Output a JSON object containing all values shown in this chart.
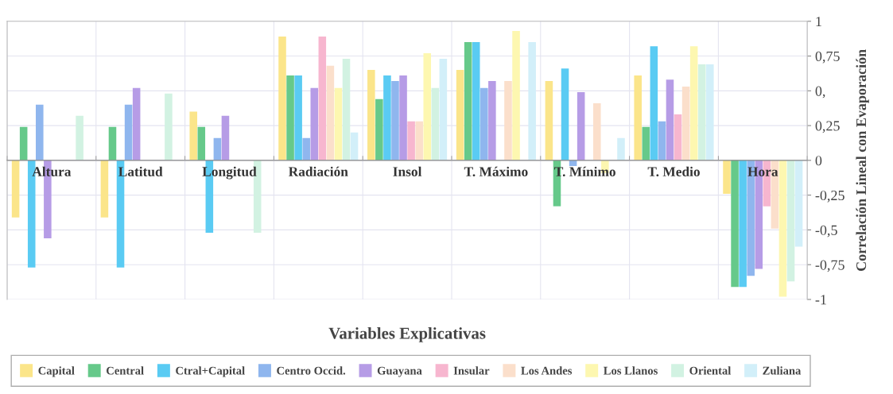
{
  "chart_data": {
    "type": "bar",
    "xlabel": "Variables Explicativas",
    "ylabel": "Correlación Lineal con Evaporación",
    "categories": [
      "Altura",
      "Latitud",
      "Longitud",
      "Radiación",
      "Insol",
      "T. Máximo",
      "T. Mínimo",
      "T. Medio",
      "Hora"
    ],
    "series": [
      {
        "name": "Capital",
        "color": "#fbe58a",
        "values": [
          -0.41,
          -0.41,
          0.35,
          0.89,
          0.65,
          0.65,
          0.57,
          0.61,
          -0.24
        ]
      },
      {
        "name": "Central",
        "color": "#66c98a",
        "values": [
          0.24,
          0.24,
          0.24,
          0.61,
          0.44,
          0.85,
          -0.33,
          0.24,
          -0.91
        ]
      },
      {
        "name": "Ctral+Capital",
        "color": "#5acbf3",
        "values": [
          -0.77,
          -0.77,
          -0.52,
          0.61,
          0.61,
          0.85,
          0.66,
          0.82,
          -0.91
        ]
      },
      {
        "name": "Centro Occid.",
        "color": "#8fb6ee",
        "values": [
          0.4,
          0.4,
          0.16,
          0.16,
          0.57,
          0.52,
          -0.04,
          0.28,
          -0.83
        ]
      },
      {
        "name": "Guayana",
        "color": "#b69ce6",
        "values": [
          -0.56,
          0.52,
          0.32,
          0.52,
          0.61,
          0.57,
          0.49,
          0.58,
          -0.78
        ]
      },
      {
        "name": "Insular",
        "color": "#f7b6cf",
        "values": [
          null,
          null,
          null,
          0.89,
          0.28,
          null,
          null,
          0.33,
          -0.33
        ]
      },
      {
        "name": "Los Andes",
        "color": "#fbdfcb",
        "values": [
          null,
          null,
          null,
          0.68,
          0.28,
          0.57,
          0.41,
          0.53,
          -0.49
        ]
      },
      {
        "name": "Los Llanos",
        "color": "#fdf7b0",
        "values": [
          null,
          null,
          null,
          0.52,
          0.77,
          0.93,
          -0.09,
          0.82,
          -0.98
        ]
      },
      {
        "name": "Oriental",
        "color": "#d2f2e2",
        "values": [
          0.32,
          0.48,
          -0.52,
          0.73,
          0.52,
          null,
          null,
          0.69,
          -0.87
        ]
      },
      {
        "name": "Zuliana",
        "color": "#d2eff9",
        "values": [
          null,
          null,
          null,
          0.2,
          0.73,
          0.85,
          0.16,
          0.69,
          -0.62
        ]
      }
    ],
    "ylim": [
      -1,
      1
    ],
    "yticks": [
      {
        "value": -1,
        "label": "-1"
      },
      {
        "value": -0.75,
        "label": "-0,75"
      },
      {
        "value": -0.5,
        "label": "-0,5"
      },
      {
        "value": -0.25,
        "label": "-0,25"
      },
      0,
      {
        "value": 0.25,
        "label": "0,25"
      },
      {
        "value": 0.5,
        "label": "0,"
      },
      {
        "value": 0.75,
        "label": "0,75"
      },
      1
    ],
    "grid": true,
    "legend": "bottom"
  }
}
